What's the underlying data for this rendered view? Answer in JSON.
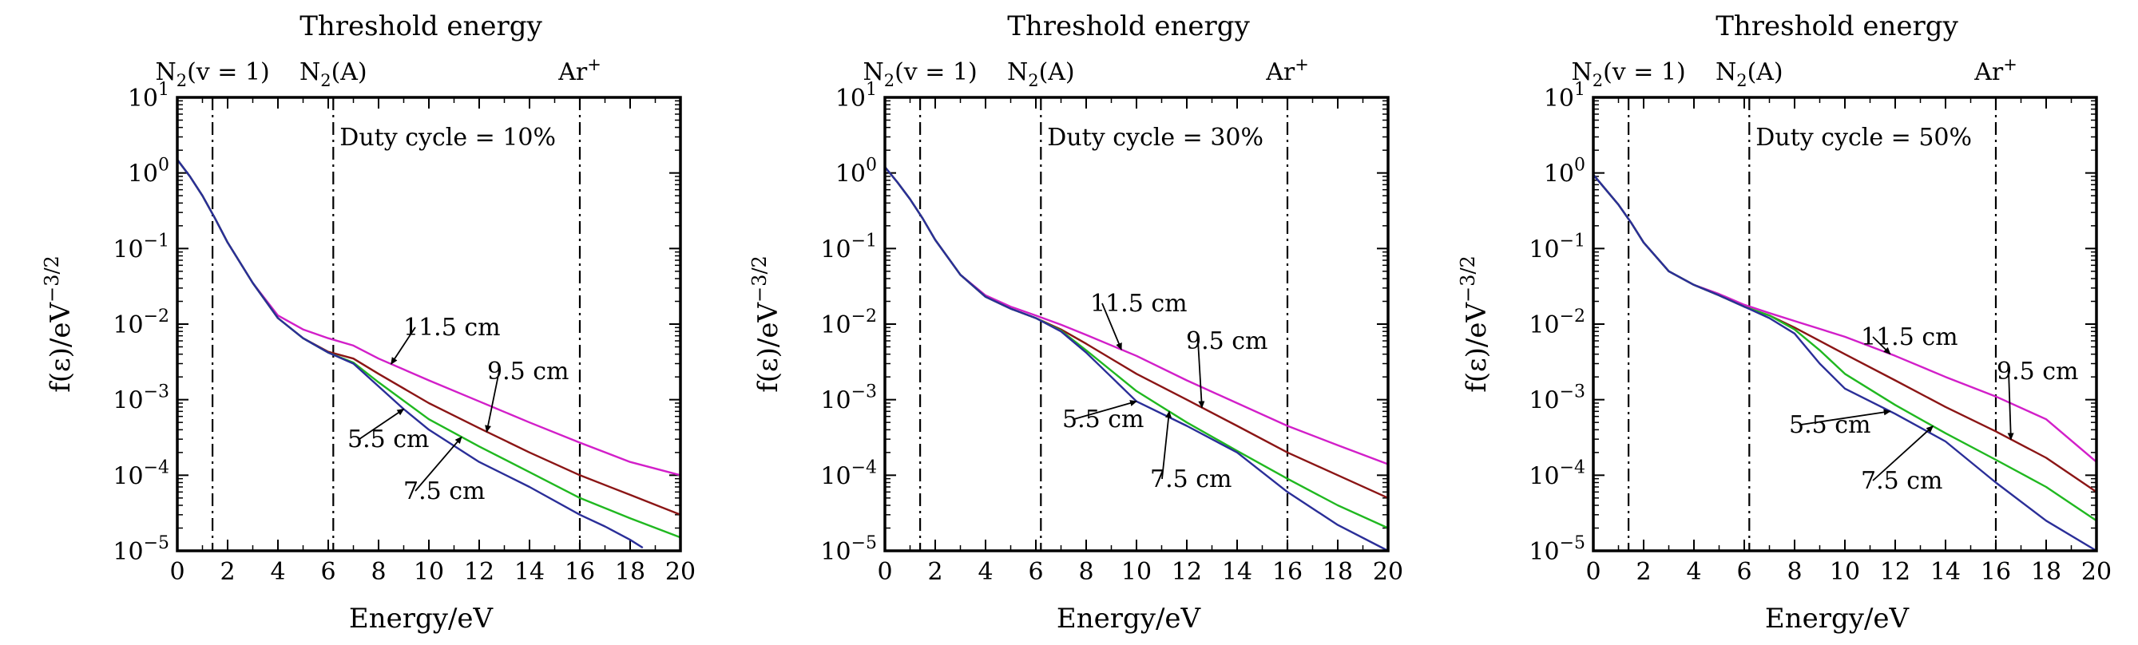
{
  "figure": {
    "panel_count": 3
  },
  "chart_data": [
    {
      "type": "line",
      "top_title": "Threshold energy",
      "annotation": "Duty cycle = 10%",
      "xlabel": "Energy/eV",
      "ylabel": "f(ε)/eV^−3/2",
      "ylabel_parts": {
        "base": "f(ε)/eV",
        "sup": "−3/2"
      },
      "xlim": [
        0,
        20
      ],
      "ylim": [
        1e-05,
        10
      ],
      "yscale": "log",
      "x_ticks": [
        0,
        2,
        4,
        6,
        8,
        10,
        12,
        14,
        16,
        18,
        20
      ],
      "y_ticks": [
        {
          "value": 10,
          "base": "10",
          "exp": "1"
        },
        {
          "value": 1,
          "base": "10",
          "exp": "0"
        },
        {
          "value": 0.1,
          "base": "10",
          "exp": "−1"
        },
        {
          "value": 0.01,
          "base": "10",
          "exp": "−2"
        },
        {
          "value": 0.001,
          "base": "10",
          "exp": "−3"
        },
        {
          "value": 0.0001,
          "base": "10",
          "exp": "−4"
        },
        {
          "value": 1e-05,
          "base": "10",
          "exp": "−5"
        }
      ],
      "thresholds": [
        {
          "x": 1.4,
          "label_base": "N",
          "label_sub": "2",
          "label_rest": "(v = 1)"
        },
        {
          "x": 6.2,
          "label_base": "N",
          "label_sub": "2",
          "label_rest": "(A)"
        },
        {
          "x": 16.0,
          "label_base": "Ar",
          "label_sup": "+",
          "label_rest": ""
        }
      ],
      "series": [
        {
          "name": "11.5 cm",
          "color": "#d21fc9",
          "x": [
            0,
            0.5,
            1,
            1.5,
            2,
            3,
            4,
            5,
            6,
            7,
            8,
            10,
            12,
            14,
            16,
            18,
            20
          ],
          "y": [
            1.5,
            0.9,
            0.5,
            0.25,
            0.12,
            0.035,
            0.013,
            0.0085,
            0.0065,
            0.0052,
            0.0035,
            0.0018,
            0.00095,
            0.0005,
            0.00027,
            0.00015,
            0.0001
          ]
        },
        {
          "name": "9.5 cm",
          "color": "#8b1515",
          "x": [
            0,
            0.5,
            1,
            1.5,
            2,
            3,
            4,
            5,
            6,
            7,
            8,
            10,
            12,
            14,
            16,
            18,
            20
          ],
          "y": [
            1.5,
            0.9,
            0.5,
            0.25,
            0.12,
            0.035,
            0.012,
            0.0065,
            0.0043,
            0.0035,
            0.0022,
            0.0009,
            0.00042,
            0.0002,
            0.0001,
            5.5e-05,
            3e-05
          ]
        },
        {
          "name": "7.5 cm",
          "color": "#20b820",
          "x": [
            0,
            0.5,
            1,
            1.5,
            2,
            3,
            4,
            5,
            6,
            7,
            8,
            10,
            12,
            14,
            16,
            18,
            20
          ],
          "y": [
            1.5,
            0.9,
            0.5,
            0.25,
            0.12,
            0.035,
            0.012,
            0.0065,
            0.0042,
            0.0031,
            0.0017,
            0.00055,
            0.00024,
            0.00011,
            5e-05,
            2.7e-05,
            1.5e-05
          ]
        },
        {
          "name": "5.5 cm",
          "color": "#2a2e98",
          "x": [
            0,
            0.5,
            1,
            1.5,
            2,
            3,
            4,
            5,
            6,
            7,
            8,
            9,
            10,
            12,
            14,
            16,
            17,
            18,
            18.5
          ],
          "y": [
            1.5,
            0.9,
            0.5,
            0.25,
            0.12,
            0.035,
            0.012,
            0.0065,
            0.0042,
            0.003,
            0.0015,
            0.00075,
            0.0004,
            0.00015,
            7e-05,
            3e-05,
            2.1e-05,
            1.4e-05,
            1.1e-05
          ]
        }
      ],
      "labels": [
        {
          "text": "11.5 cm",
          "series": "11.5 cm"
        },
        {
          "text": "9.5 cm",
          "series": "9.5 cm"
        },
        {
          "text": "5.5 cm",
          "series": "5.5 cm"
        },
        {
          "text": "7.5 cm",
          "series": "7.5 cm"
        }
      ]
    },
    {
      "type": "line",
      "top_title": "Threshold energy",
      "annotation": "Duty cycle = 30%",
      "xlabel": "Energy/eV",
      "ylabel": "f(ε)/eV^−3/2",
      "ylabel_parts": {
        "base": "f(ε)/eV",
        "sup": "−3/2"
      },
      "xlim": [
        0,
        20
      ],
      "ylim": [
        1e-05,
        10
      ],
      "yscale": "log",
      "x_ticks": [
        0,
        2,
        4,
        6,
        8,
        10,
        12,
        14,
        16,
        18,
        20
      ],
      "y_ticks": [
        {
          "value": 10,
          "base": "10",
          "exp": "1"
        },
        {
          "value": 1,
          "base": "10",
          "exp": "0"
        },
        {
          "value": 0.1,
          "base": "10",
          "exp": "−1"
        },
        {
          "value": 0.01,
          "base": "10",
          "exp": "−2"
        },
        {
          "value": 0.001,
          "base": "10",
          "exp": "−3"
        },
        {
          "value": 0.0001,
          "base": "10",
          "exp": "−4"
        },
        {
          "value": 1e-05,
          "base": "10",
          "exp": "−5"
        }
      ],
      "thresholds": [
        {
          "x": 1.4,
          "label_base": "N",
          "label_sub": "2",
          "label_rest": "(v = 1)"
        },
        {
          "x": 6.2,
          "label_base": "N",
          "label_sub": "2",
          "label_rest": "(A)"
        },
        {
          "x": 16.0,
          "label_base": "Ar",
          "label_sup": "+",
          "label_rest": ""
        }
      ],
      "series": [
        {
          "name": "11.5 cm",
          "color": "#d21fc9",
          "x": [
            0,
            0.5,
            1,
            1.5,
            2,
            3,
            4,
            5,
            6,
            7,
            8,
            10,
            12,
            14,
            16,
            18,
            20
          ],
          "y": [
            1.2,
            0.75,
            0.45,
            0.25,
            0.13,
            0.045,
            0.024,
            0.017,
            0.013,
            0.0098,
            0.0072,
            0.0038,
            0.0018,
            0.0009,
            0.00045,
            0.00025,
            0.00014
          ]
        },
        {
          "name": "9.5 cm",
          "color": "#8b1515",
          "x": [
            0,
            0.5,
            1,
            1.5,
            2,
            3,
            4,
            5,
            6,
            7,
            8,
            10,
            12,
            14,
            16,
            18,
            20
          ],
          "y": [
            1.2,
            0.75,
            0.45,
            0.25,
            0.13,
            0.045,
            0.023,
            0.016,
            0.012,
            0.0085,
            0.0055,
            0.0022,
            0.001,
            0.00045,
            0.0002,
            0.0001,
            5e-05
          ]
        },
        {
          "name": "7.5 cm",
          "color": "#20b820",
          "x": [
            0,
            0.5,
            1,
            1.5,
            2,
            3,
            4,
            5,
            6,
            7,
            8,
            10,
            12,
            14,
            16,
            18,
            20
          ],
          "y": [
            1.2,
            0.75,
            0.45,
            0.25,
            0.13,
            0.045,
            0.023,
            0.016,
            0.012,
            0.0082,
            0.0045,
            0.0013,
            0.0005,
            0.00021,
            9e-05,
            4e-05,
            2e-05
          ]
        },
        {
          "name": "5.5 cm",
          "color": "#2a2e98",
          "x": [
            0,
            0.5,
            1,
            1.5,
            2,
            3,
            4,
            5,
            6,
            7,
            8,
            9,
            10,
            12,
            14,
            16,
            18,
            20
          ],
          "y": [
            1.2,
            0.75,
            0.45,
            0.25,
            0.13,
            0.045,
            0.023,
            0.016,
            0.012,
            0.008,
            0.0042,
            0.002,
            0.00095,
            0.00045,
            0.0002,
            6e-05,
            2.2e-05,
            1e-05
          ]
        }
      ],
      "labels": [
        {
          "text": "11.5 cm",
          "series": "11.5 cm"
        },
        {
          "text": "9.5 cm",
          "series": "9.5 cm"
        },
        {
          "text": "5.5 cm",
          "series": "5.5 cm"
        },
        {
          "text": "7.5 cm",
          "series": "7.5 cm"
        }
      ]
    },
    {
      "type": "line",
      "top_title": "Threshold energy",
      "annotation": "Duty cycle = 50%",
      "xlabel": "Energy/eV",
      "ylabel": "f(ε)/eV^−3/2",
      "ylabel_parts": {
        "base": "f(ε)/eV",
        "sup": "−3/2"
      },
      "xlim": [
        0,
        20
      ],
      "ylim": [
        1e-05,
        10
      ],
      "yscale": "log",
      "x_ticks": [
        0,
        2,
        4,
        6,
        8,
        10,
        12,
        14,
        16,
        18,
        20
      ],
      "y_ticks": [
        {
          "value": 10,
          "base": "10",
          "exp": "1"
        },
        {
          "value": 1,
          "base": "10",
          "exp": "0"
        },
        {
          "value": 0.1,
          "base": "10",
          "exp": "−1"
        },
        {
          "value": 0.01,
          "base": "10",
          "exp": "−2"
        },
        {
          "value": 0.001,
          "base": "10",
          "exp": "−3"
        },
        {
          "value": 0.0001,
          "base": "10",
          "exp": "−4"
        },
        {
          "value": 1e-05,
          "base": "10",
          "exp": "−5"
        }
      ],
      "thresholds": [
        {
          "x": 1.4,
          "label_base": "N",
          "label_sub": "2",
          "label_rest": "(v = 1)"
        },
        {
          "x": 6.2,
          "label_base": "N",
          "label_sub": "2",
          "label_rest": "(A)"
        },
        {
          "x": 16.0,
          "label_base": "Ar",
          "label_sup": "+",
          "label_rest": ""
        }
      ],
      "series": [
        {
          "name": "11.5 cm",
          "color": "#d21fc9",
          "x": [
            0,
            0.5,
            1,
            1.5,
            2,
            3,
            4,
            5,
            6,
            7,
            8,
            10,
            12,
            14,
            16,
            18,
            20
          ],
          "y": [
            0.95,
            0.6,
            0.38,
            0.22,
            0.12,
            0.05,
            0.033,
            0.025,
            0.018,
            0.014,
            0.011,
            0.0068,
            0.0038,
            0.002,
            0.0011,
            0.00055,
            0.00015
          ]
        },
        {
          "name": "9.5 cm",
          "color": "#8b1515",
          "x": [
            0,
            0.5,
            1,
            1.5,
            2,
            3,
            4,
            5,
            6,
            7,
            8,
            10,
            12,
            14,
            16,
            18,
            20
          ],
          "y": [
            0.95,
            0.6,
            0.38,
            0.22,
            0.12,
            0.05,
            0.033,
            0.024,
            0.017,
            0.013,
            0.009,
            0.004,
            0.0018,
            0.0008,
            0.00038,
            0.00017,
            6e-05
          ]
        },
        {
          "name": "7.5 cm",
          "color": "#20b820",
          "x": [
            0,
            0.5,
            1,
            1.5,
            2,
            3,
            4,
            5,
            6,
            7,
            8,
            9,
            10,
            12,
            14,
            16,
            18,
            20
          ],
          "y": [
            0.95,
            0.6,
            0.38,
            0.22,
            0.12,
            0.05,
            0.033,
            0.024,
            0.017,
            0.013,
            0.0085,
            0.0045,
            0.0022,
            0.00085,
            0.00036,
            0.00016,
            7e-05,
            2.5e-05
          ]
        },
        {
          "name": "5.5 cm",
          "color": "#2a2e98",
          "x": [
            0,
            0.5,
            1,
            1.5,
            2,
            3,
            4,
            5,
            6,
            7,
            8,
            9,
            10,
            12,
            14,
            16,
            18,
            20
          ],
          "y": [
            0.95,
            0.6,
            0.38,
            0.22,
            0.12,
            0.05,
            0.033,
            0.024,
            0.017,
            0.012,
            0.0075,
            0.003,
            0.0014,
            0.00065,
            0.00028,
            8e-05,
            2.5e-05,
            1e-05
          ]
        }
      ],
      "labels": [
        {
          "text": "11.5 cm",
          "series": "11.5 cm"
        },
        {
          "text": "9.5 cm",
          "series": "9.5 cm"
        },
        {
          "text": "5.5 cm",
          "series": "5.5 cm"
        },
        {
          "text": "7.5 cm",
          "series": "7.5 cm"
        }
      ]
    }
  ]
}
